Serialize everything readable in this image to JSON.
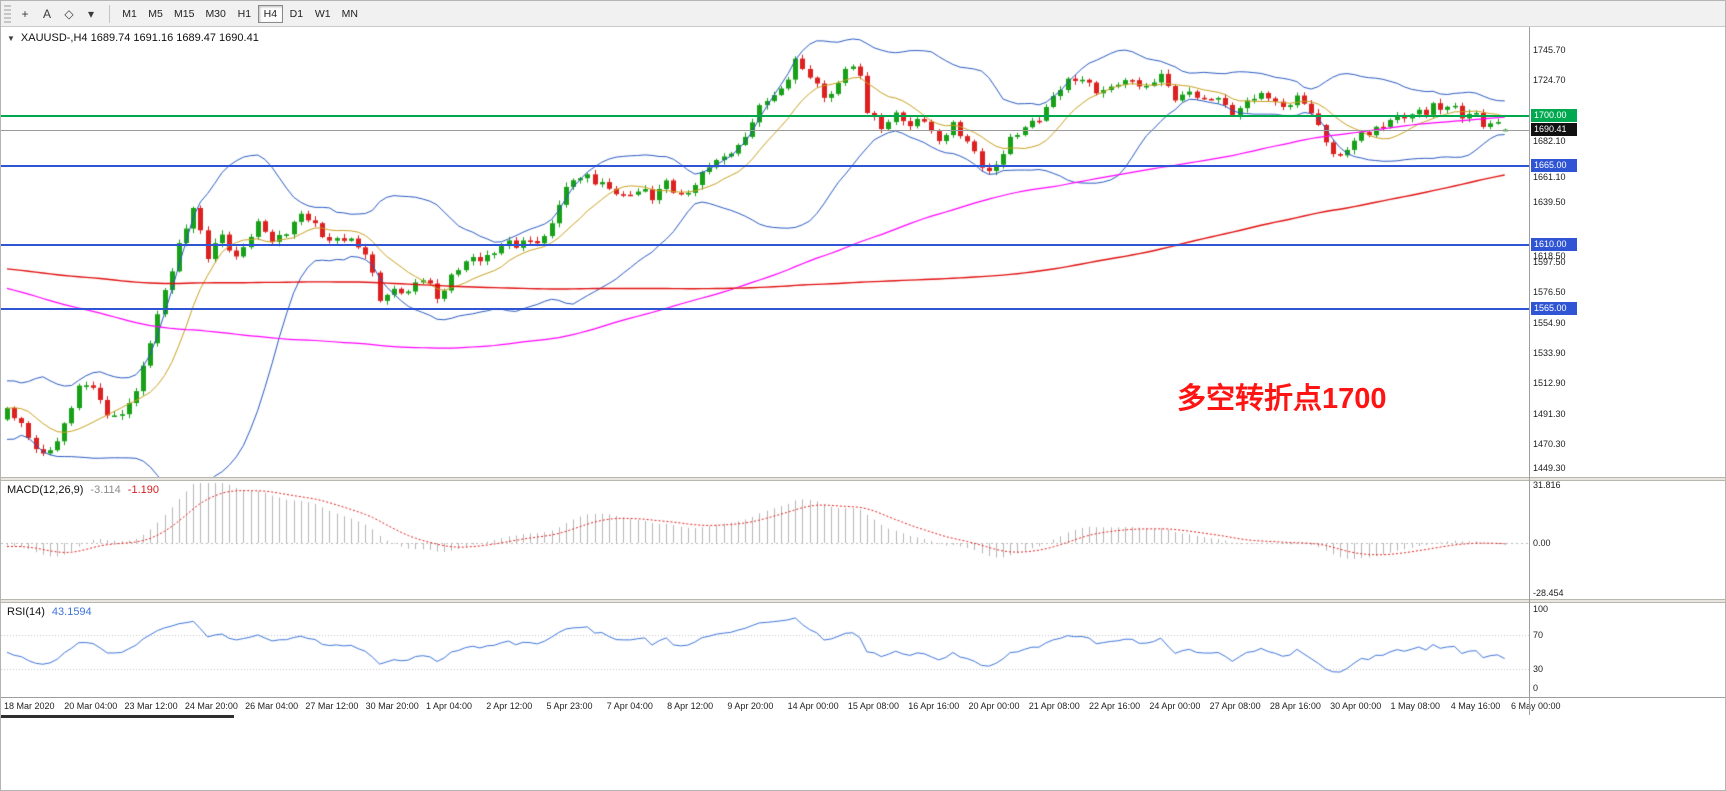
{
  "toolbar": {
    "tools": [
      {
        "glyph": "+",
        "name": "crosshair-tool-button"
      },
      {
        "glyph": "A",
        "name": "text-label-tool-button"
      },
      {
        "glyph": "◇",
        "name": "shapes-tool-button"
      },
      {
        "glyph": "▾",
        "name": "shapes-dropdown-arrow"
      }
    ],
    "timeframes": [
      "M1",
      "M5",
      "M15",
      "M30",
      "H1",
      "H4",
      "D1",
      "W1",
      "MN"
    ],
    "active_timeframe": "H4"
  },
  "chart": {
    "symbol_marker": "▼",
    "symbol_line": "XAUUSD-,H4 1689.74 1691.16 1689.47 1690.41",
    "annotation": {
      "text": "多空转折点1700",
      "color": "#ff1414"
    },
    "colors": {
      "bull": "#18a018",
      "bear": "#dd2020",
      "bands": "#2959c0",
      "ma_fast": "#c8a020",
      "ma_mid": "#ff00ff",
      "ma_slow": "#e01010"
    },
    "hlines": [
      {
        "price": 1700.0,
        "color": "#00a94f",
        "width": 2
      },
      {
        "price": 1690.41,
        "color": "#9a9a9a",
        "width": 1
      },
      {
        "price": 1665.0,
        "color": "#2f55d4",
        "width": 2
      },
      {
        "price": 1610.0,
        "color": "#2f55d4",
        "width": 2
      },
      {
        "price": 1565.0,
        "color": "#2f55d4",
        "width": 2
      }
    ],
    "price_axis": {
      "labels": [
        {
          "text": "1745.70",
          "price": 1745.7
        },
        {
          "text": "1724.70",
          "price": 1724.7
        },
        {
          "text": "1682.10",
          "price": 1682.1
        },
        {
          "text": "1661.10",
          "price": 1661.1
        },
        {
          "text": "1639.50",
          "price": 1639.5
        },
        {
          "text": "1618.50",
          "price": 1618.5
        },
        {
          "text": "1597.50",
          "price": 1597.5
        },
        {
          "text": "1576.50",
          "price": 1576.5
        },
        {
          "text": "1554.90",
          "price": 1554.9
        },
        {
          "text": "1533.90",
          "price": 1533.9
        },
        {
          "text": "1512.90",
          "price": 1512.9
        },
        {
          "text": "1491.30",
          "price": 1491.3
        },
        {
          "text": "1470.30",
          "price": 1470.3
        },
        {
          "text": "1449.30",
          "price": 1449.3
        }
      ],
      "special": [
        {
          "text": "1700.00",
          "price": 1700.0,
          "bg": "#00a94f"
        },
        {
          "text": "1690.41",
          "price": 1690.41,
          "bg": "#111111"
        },
        {
          "text": "1665.00",
          "price": 1665.0,
          "bg": "#2f55d4"
        },
        {
          "text": "1610.00",
          "price": 1610.0,
          "bg": "#2f55d4"
        },
        {
          "text": "1565.00",
          "price": 1565.0,
          "bg": "#2f55d4"
        }
      ]
    },
    "time_axis": [
      "18 Mar 2020",
      "20 Mar 04:00",
      "23 Mar 12:00",
      "24 Mar 20:00",
      "26 Mar 04:00",
      "27 Mar 12:00",
      "30 Mar 20:00",
      "1 Apr 04:00",
      "2 Apr 12:00",
      "5 Apr 23:00",
      "7 Apr 04:00",
      "8 Apr 12:00",
      "9 Apr 20:00",
      "14 Apr 00:00",
      "15 Apr 08:00",
      "16 Apr 16:00",
      "20 Apr 00:00",
      "21 Apr 08:00",
      "22 Apr 16:00",
      "24 Apr 00:00",
      "27 Apr 08:00",
      "28 Apr 16:00",
      "30 Apr 00:00",
      "1 May 08:00",
      "4 May 16:00",
      "6 May 00:00"
    ]
  },
  "macd": {
    "name": "MACD(12,26,9)",
    "main_value": "-3.114",
    "signal_value": "-1.190",
    "axis": [
      "31.816",
      "0.00",
      "-28.454"
    ],
    "histogram_color": "#b6b6b6",
    "signal_color": "#e02020"
  },
  "rsi": {
    "name": "RSI(14)",
    "value": "43.1594",
    "axis": [
      "100",
      "70",
      "30",
      "0"
    ],
    "levels": [
      70,
      30
    ],
    "line_color": "#3f74d9",
    "levels_color": "#c4c4c4"
  },
  "chart_data": {
    "type": "candlestick",
    "symbol": "XAUUSD-",
    "timeframe": "H4",
    "visible_range": {
      "from": "18 Mar 2020",
      "to": "6 May 2020"
    },
    "ohlc_current": {
      "open": 1689.74,
      "high": 1691.16,
      "low": 1689.47,
      "close": 1690.41
    },
    "key_levels": [
      1700.0,
      1665.0,
      1610.0,
      1565.0
    ],
    "indicators": {
      "bollinger": {
        "period": 20,
        "deviation": 2
      },
      "ma_fast_period": 10,
      "ma_mid_period": 120,
      "ma_slow_period": 200,
      "macd_params": [
        12,
        26,
        9
      ],
      "rsi_period": 14
    },
    "price_anchors": [
      [
        0,
        1496
      ],
      [
        3,
        1474
      ],
      [
        5,
        1464
      ],
      [
        8,
        1480
      ],
      [
        10,
        1508
      ],
      [
        12,
        1515
      ],
      [
        14,
        1492
      ],
      [
        16,
        1486
      ],
      [
        18,
        1510
      ],
      [
        20,
        1545
      ],
      [
        22,
        1575
      ],
      [
        24,
        1608
      ],
      [
        26,
        1640
      ],
      [
        28,
        1600
      ],
      [
        30,
        1615
      ],
      [
        32,
        1600
      ],
      [
        33,
        1612
      ],
      [
        35,
        1625
      ],
      [
        37,
        1610
      ],
      [
        39,
        1622
      ],
      [
        41,
        1633
      ],
      [
        43,
        1620
      ],
      [
        45,
        1612
      ],
      [
        47,
        1618
      ],
      [
        49,
        1608
      ],
      [
        50,
        1600
      ],
      [
        52,
        1572
      ],
      [
        54,
        1582
      ],
      [
        56,
        1574
      ],
      [
        58,
        1584
      ],
      [
        60,
        1575
      ],
      [
        62,
        1588
      ],
      [
        64,
        1596
      ],
      [
        67,
        1603
      ],
      [
        69,
        1610
      ],
      [
        71,
        1606
      ],
      [
        73,
        1613
      ],
      [
        75,
        1618
      ],
      [
        77,
        1636
      ],
      [
        79,
        1655
      ],
      [
        81,
        1662
      ],
      [
        83,
        1652
      ],
      [
        84,
        1648
      ],
      [
        86,
        1640
      ],
      [
        88,
        1652
      ],
      [
        90,
        1644
      ],
      [
        92,
        1650
      ],
      [
        94,
        1645
      ],
      [
        96,
        1655
      ],
      [
        98,
        1662
      ],
      [
        100,
        1670
      ],
      [
        102,
        1682
      ],
      [
        104,
        1695
      ],
      [
        106,
        1708
      ],
      [
        108,
        1720
      ],
      [
        110,
        1742
      ],
      [
        112,
        1725
      ],
      [
        114,
        1712
      ],
      [
        116,
        1724
      ],
      [
        117,
        1737
      ],
      [
        119,
        1726
      ],
      [
        120,
        1702
      ],
      [
        122,
        1694
      ],
      [
        124,
        1702
      ],
      [
        126,
        1690
      ],
      [
        128,
        1697
      ],
      [
        130,
        1686
      ],
      [
        132,
        1692
      ],
      [
        134,
        1680
      ],
      [
        136,
        1670
      ],
      [
        137,
        1662
      ],
      [
        139,
        1674
      ],
      [
        141,
        1685
      ],
      [
        142,
        1692
      ],
      [
        144,
        1702
      ],
      [
        146,
        1712
      ],
      [
        148,
        1722
      ],
      [
        150,
        1730
      ],
      [
        151,
        1724
      ],
      [
        153,
        1714
      ],
      [
        155,
        1722
      ],
      [
        157,
        1729
      ],
      [
        159,
        1718
      ],
      [
        161,
        1725
      ],
      [
        163,
        1713
      ],
      [
        165,
        1719
      ],
      [
        167,
        1707
      ],
      [
        169,
        1713
      ],
      [
        171,
        1704
      ],
      [
        173,
        1710
      ],
      [
        176,
        1714
      ],
      [
        178,
        1708
      ],
      [
        180,
        1714
      ],
      [
        182,
        1700
      ],
      [
        184,
        1684
      ],
      [
        186,
        1673
      ],
      [
        188,
        1680
      ],
      [
        190,
        1688
      ],
      [
        192,
        1695
      ],
      [
        193,
        1700
      ],
      [
        195,
        1696
      ],
      [
        197,
        1703
      ],
      [
        199,
        1709
      ],
      [
        201,
        1705
      ],
      [
        203,
        1698
      ],
      [
        205,
        1703
      ],
      [
        207,
        1694
      ],
      [
        209,
        1690.41
      ]
    ],
    "prehistory_anchors": [
      [
        -200,
        1588
      ],
      [
        -170,
        1602
      ],
      [
        -140,
        1630
      ],
      [
        -115,
        1645
      ],
      [
        -95,
        1662
      ],
      [
        -85,
        1681
      ],
      [
        -78,
        1656
      ],
      [
        -70,
        1650
      ],
      [
        -63,
        1602
      ],
      [
        -55,
        1565
      ],
      [
        -48,
        1532
      ],
      [
        -44,
        1558
      ],
      [
        -40,
        1506
      ],
      [
        -36,
        1458
      ],
      [
        -31,
        1492
      ],
      [
        -26,
        1462
      ],
      [
        -22,
        1508
      ],
      [
        -18,
        1472
      ],
      [
        -14,
        1516
      ],
      [
        -10,
        1480
      ],
      [
        -6,
        1506
      ],
      [
        -1,
        1492
      ]
    ]
  }
}
